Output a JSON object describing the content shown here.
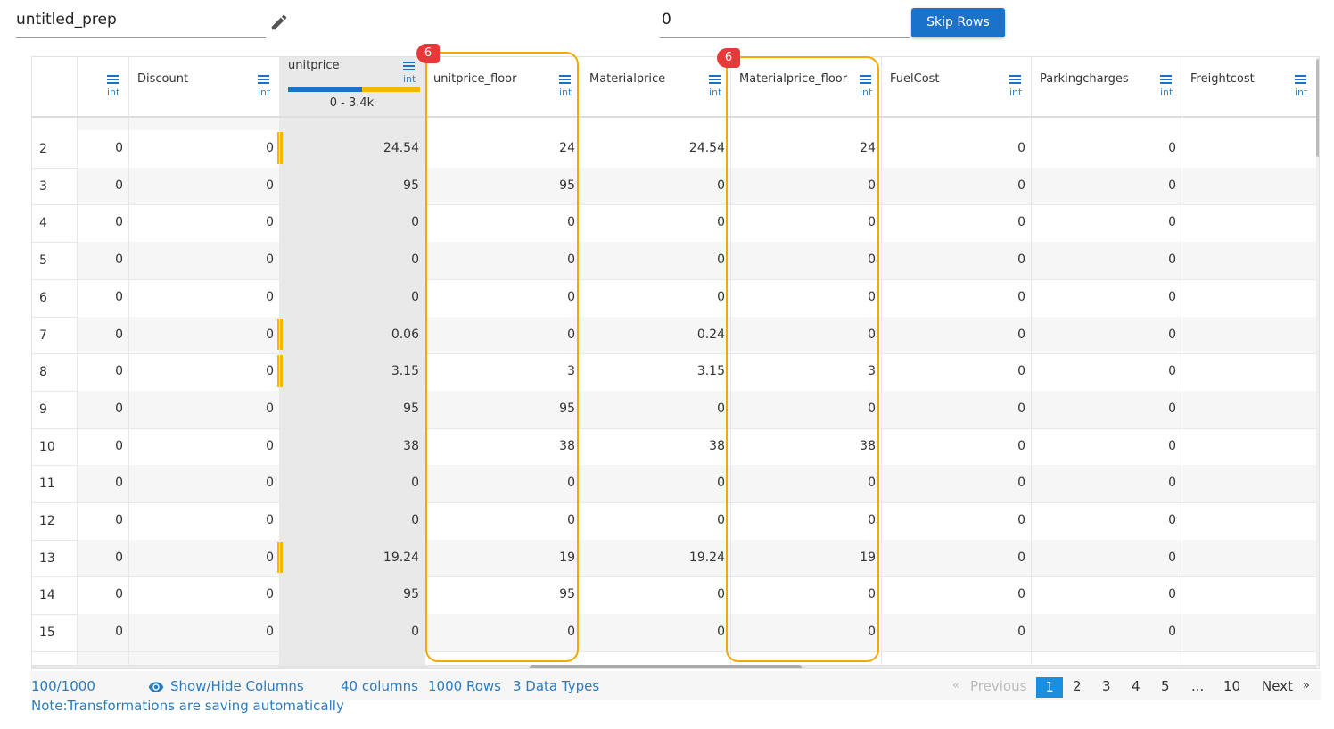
{
  "header": {
    "name": "untitled_prep",
    "skip_value": "0",
    "skip_button": "Skip Rows"
  },
  "table": {
    "columns": [
      {
        "type": "int"
      },
      {
        "name": "Discount",
        "type": "int"
      },
      {
        "name": "unitprice",
        "type": "int",
        "range": "0 - 3.4k"
      },
      {
        "name": "unitprice_floor",
        "type": "int",
        "badge": "6"
      },
      {
        "name": "Materialprice",
        "type": "int"
      },
      {
        "name": "Materialprice_floor",
        "type": "int",
        "badge": "6"
      },
      {
        "name": "FuelCost",
        "type": "int"
      },
      {
        "name": "Parkingcharges",
        "type": "int"
      },
      {
        "name": "Freightcost",
        "type": "int"
      }
    ],
    "rows": [
      [
        "2",
        "0",
        "0",
        "24.54",
        "24",
        "24.54",
        "24",
        "0",
        "0"
      ],
      [
        "3",
        "0",
        "0",
        "95",
        "95",
        "0",
        "0",
        "0",
        "0"
      ],
      [
        "4",
        "0",
        "0",
        "0",
        "0",
        "0",
        "0",
        "0",
        "0"
      ],
      [
        "5",
        "0",
        "0",
        "0",
        "0",
        "0",
        "0",
        "0",
        "0"
      ],
      [
        "6",
        "0",
        "0",
        "0",
        "0",
        "0",
        "0",
        "0",
        "0"
      ],
      [
        "7",
        "0",
        "0",
        "0.06",
        "0",
        "0.24",
        "0",
        "0",
        "0"
      ],
      [
        "8",
        "0",
        "0",
        "3.15",
        "3",
        "3.15",
        "3",
        "0",
        "0"
      ],
      [
        "9",
        "0",
        "0",
        "95",
        "95",
        "0",
        "0",
        "0",
        "0"
      ],
      [
        "10",
        "0",
        "0",
        "38",
        "38",
        "38",
        "38",
        "0",
        "0"
      ],
      [
        "11",
        "0",
        "0",
        "0",
        "0",
        "0",
        "0",
        "0",
        "0"
      ],
      [
        "12",
        "0",
        "0",
        "0",
        "0",
        "0",
        "0",
        "0",
        "0"
      ],
      [
        "13",
        "0",
        "0",
        "19.24",
        "19",
        "19.24",
        "19",
        "0",
        "0"
      ],
      [
        "14",
        "0",
        "0",
        "95",
        "95",
        "0",
        "0",
        "0",
        "0"
      ],
      [
        "15",
        "0",
        "0",
        "0",
        "0",
        "0",
        "0",
        "0",
        "0"
      ]
    ]
  },
  "footer": {
    "count": "100/1000",
    "show_hide": "Show/Hide Columns",
    "columns": "40 columns",
    "rows": "1000 Rows",
    "types": "3 Data Types",
    "note": "Note:Transformations are saving automatically",
    "pagination": {
      "first": "«",
      "previous": "Previous",
      "pages": [
        "1",
        "2",
        "3",
        "4",
        "5",
        "...",
        "10"
      ],
      "next": "Next",
      "last": "»"
    }
  }
}
